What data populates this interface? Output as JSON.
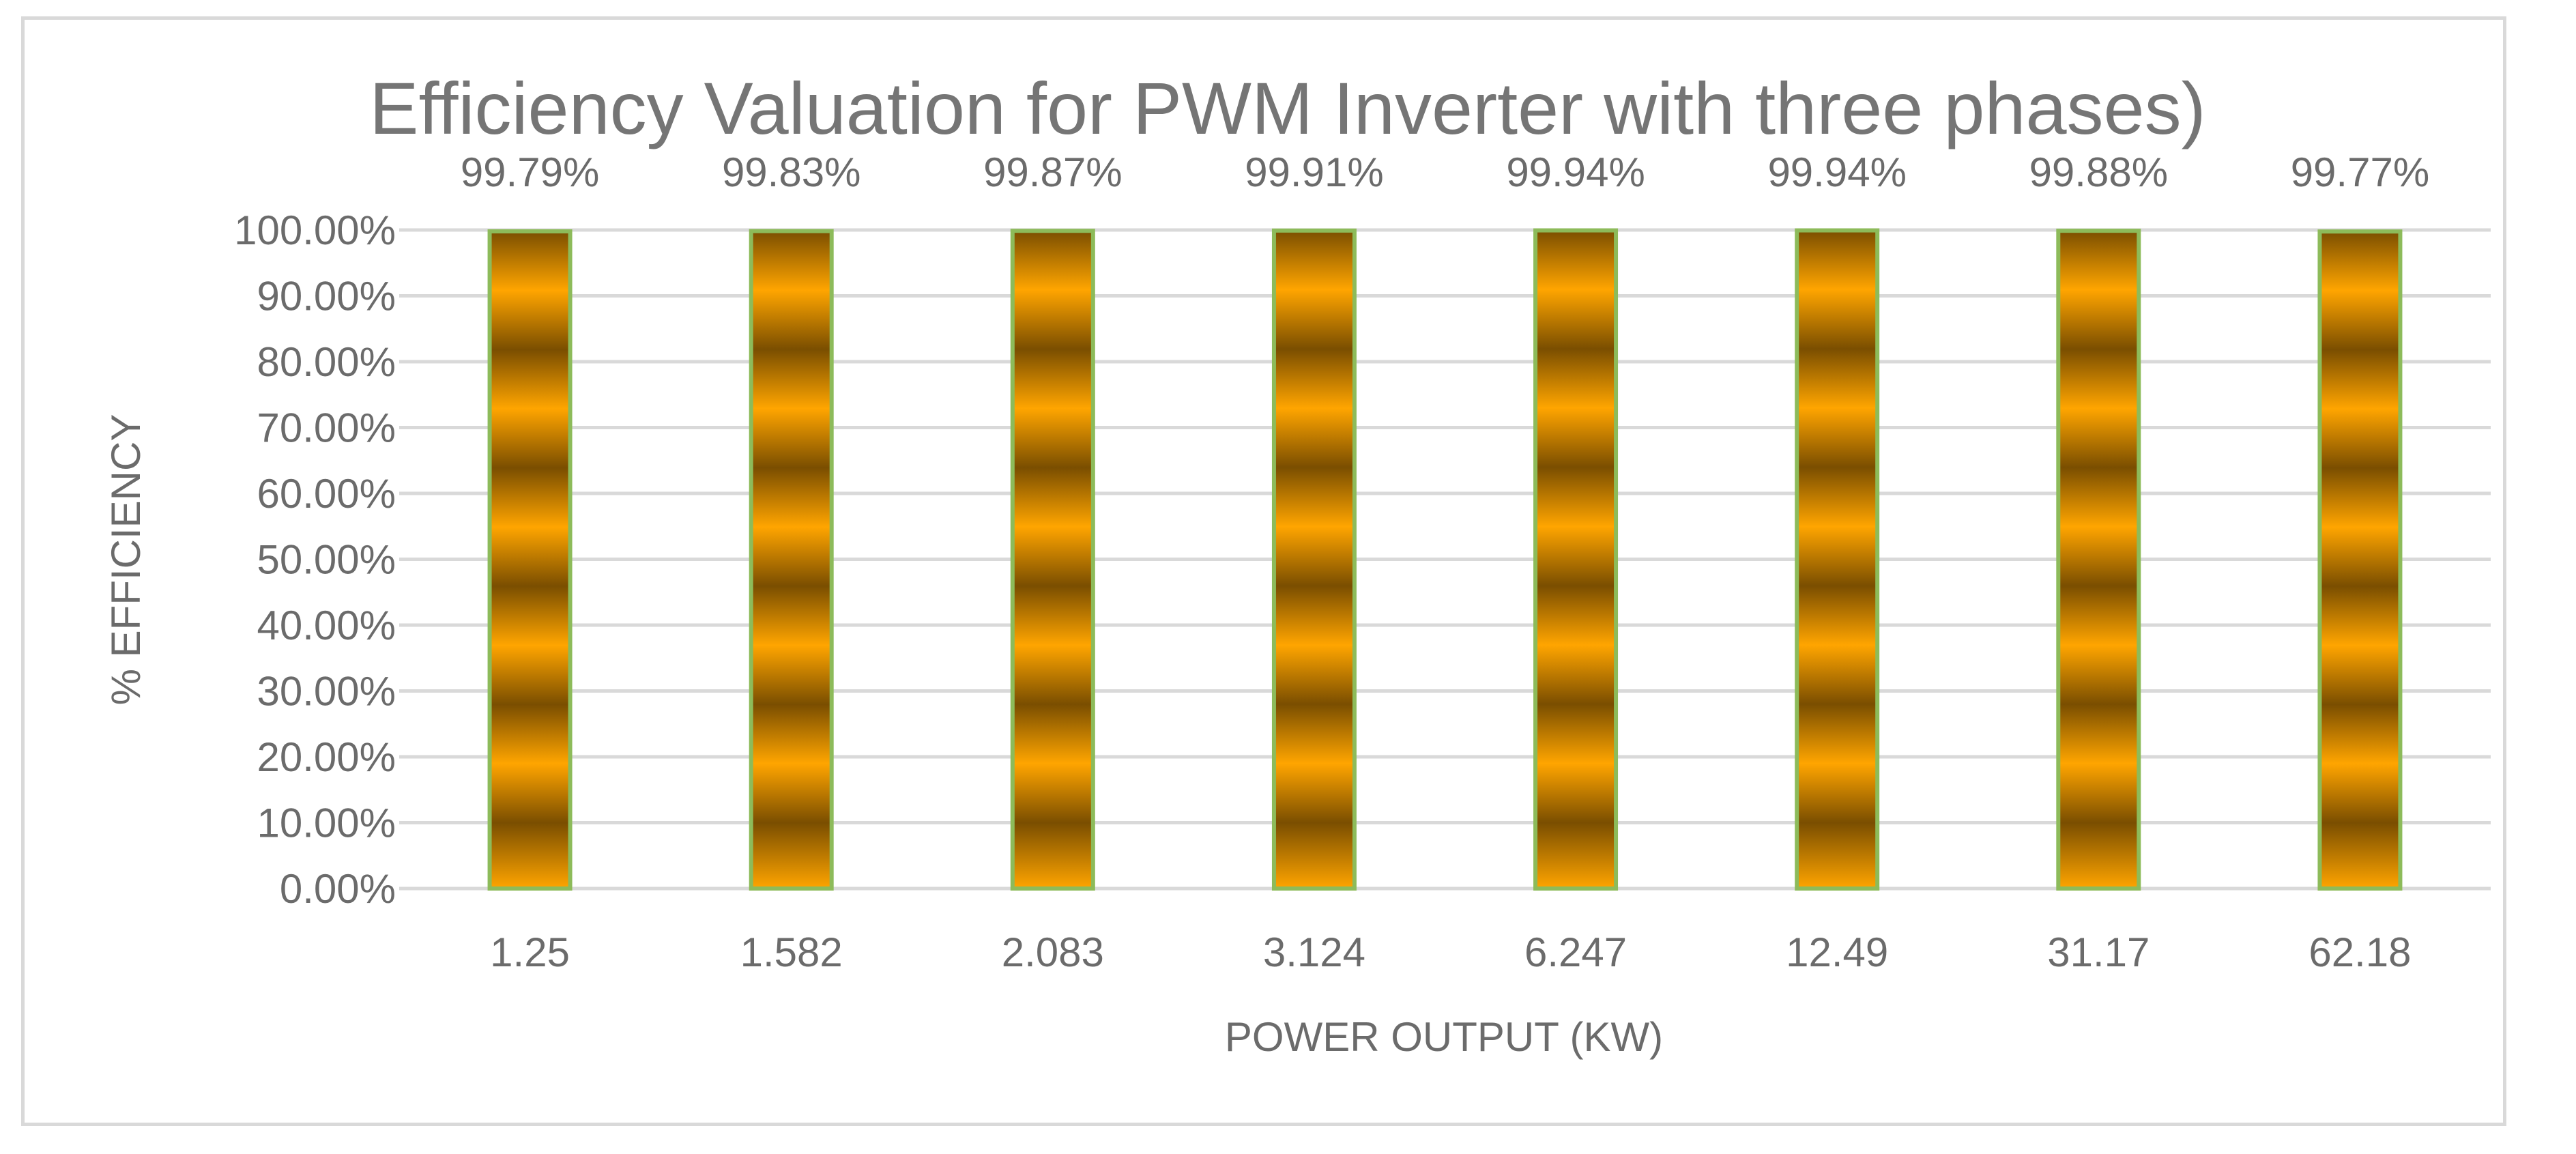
{
  "chart_data": {
    "type": "bar",
    "title": "Efficiency Valuation for PWM Inverter with three phases)",
    "xlabel": "POWER OUTPUT (KW)",
    "ylabel": "% EFFICIENCY",
    "categories": [
      "1.25",
      "1.582",
      "2.083",
      "3.124",
      "6.247",
      "12.49",
      "31.17",
      "62.18"
    ],
    "values": [
      99.79,
      99.83,
      99.87,
      99.91,
      99.94,
      99.94,
      99.88,
      99.77
    ],
    "data_labels": [
      "99.79%",
      "99.83%",
      "99.87%",
      "99.91%",
      "99.94%",
      "99.94%",
      "99.88%",
      "99.77%"
    ],
    "ylim": [
      0,
      100
    ],
    "y_ticks": [
      0,
      10,
      20,
      30,
      40,
      50,
      60,
      70,
      80,
      90,
      100
    ],
    "y_tick_labels": [
      "0.00%",
      "10.00%",
      "20.00%",
      "30.00%",
      "40.00%",
      "50.00%",
      "60.00%",
      "70.00%",
      "80.00%",
      "90.00%",
      "100.00%"
    ],
    "grid": true,
    "legend": "none",
    "colors": {
      "bar_dark": "#7a4e00",
      "bar_light": "#ffa500",
      "bar_outline": "#8dbb5a",
      "grid": "#d9d9d9",
      "text": "#6b6b6b",
      "frame": "#d9d9d9"
    }
  }
}
